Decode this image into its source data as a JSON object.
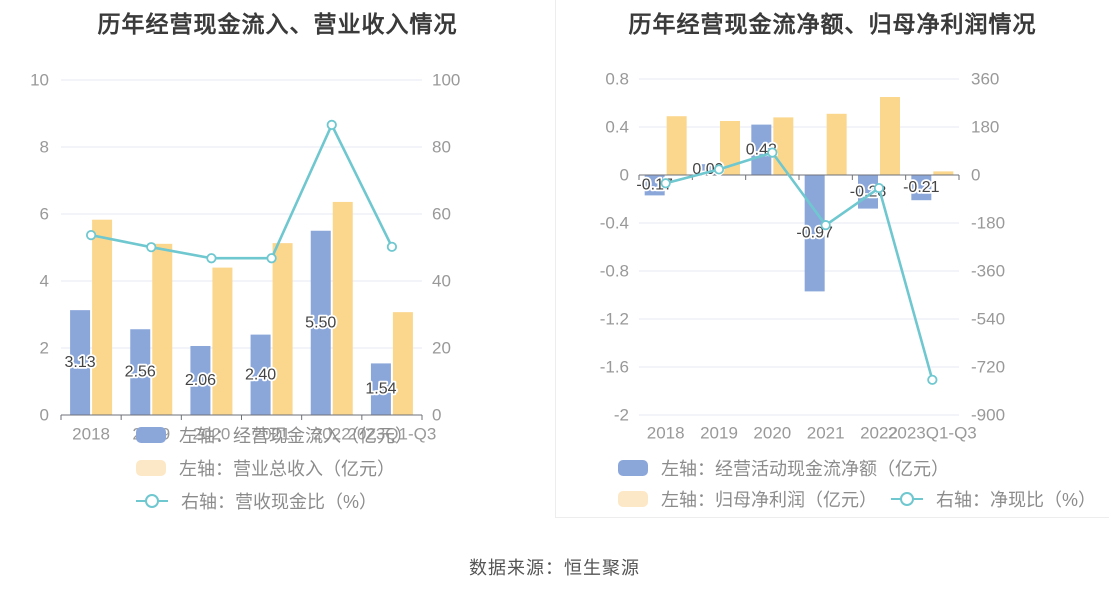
{
  "page": {
    "source": "数据来源：恒生聚源"
  },
  "colors": {
    "bar_blue": "#8ba7da",
    "bar_yellow": "#fbd78e",
    "legend_yellow": "#fce8c6",
    "line_teal": "#6fc7cf",
    "grid": "#e4eaf5",
    "axis": "#6e7079",
    "tick_text": "#999999",
    "bar_label": "#444444",
    "title_text": "#3a3a3a",
    "legend_text": "#8c8c8c",
    "source_text": "#555555"
  },
  "chart_data": [
    {
      "type": "bar",
      "title": "历年经营现金流入、营业收入情况",
      "categories": [
        "2018",
        "2019",
        "2020",
        "2021",
        "2022",
        "2023Q1-Q3"
      ],
      "left_axis": {
        "ticks": [
          "10",
          "8",
          "6",
          "4",
          "2",
          "0"
        ],
        "min": 0,
        "max": 10
      },
      "right_axis": {
        "ticks": [
          "100",
          "80",
          "60",
          "40",
          "20",
          "0"
        ],
        "min": 0,
        "max": 100
      },
      "grid": true,
      "legend_position": "bottom-left-overlap",
      "series": [
        {
          "name": "左轴：经营现金流入（亿元）",
          "type": "bar",
          "axis": "left",
          "color_key": "bar_blue",
          "values": [
            3.13,
            2.56,
            2.06,
            2.4,
            5.5,
            1.54
          ],
          "labels": [
            "3.13",
            "2.56",
            "2.06",
            "2.40",
            "5.50",
            "1.54"
          ]
        },
        {
          "name": "左轴：营业总收入（亿元）",
          "type": "bar",
          "axis": "left",
          "color_key": "bar_yellow",
          "values": [
            5.83,
            5.11,
            4.4,
            5.13,
            6.36,
            3.07
          ],
          "labels": null
        },
        {
          "name": "右轴：营收现金比（%）",
          "type": "line",
          "axis": "right",
          "color_key": "line_teal",
          "values": [
            53.7,
            50.1,
            46.8,
            46.8,
            86.6,
            50.2
          ],
          "labels": null
        }
      ]
    },
    {
      "type": "bar",
      "title": "历年经营现金流净额、归母净利润情况",
      "categories": [
        "2018",
        "2019",
        "2020",
        "2021",
        "2022",
        "2023Q1-Q3"
      ],
      "left_axis": {
        "ticks": [
          "0.8",
          "0.4",
          "0",
          "-0.4",
          "-0.8",
          "-1.2",
          "-1.6",
          "-2"
        ],
        "min": -2,
        "max": 0.8
      },
      "right_axis": {
        "ticks": [
          "360",
          "180",
          "0",
          "-180",
          "-360",
          "-540",
          "-720",
          "-900"
        ],
        "min": -900,
        "max": 360
      },
      "grid": true,
      "legend_position": "bottom-left",
      "series": [
        {
          "name": "左轴：经营活动现金流净额（亿元）",
          "type": "bar",
          "axis": "left",
          "color_key": "bar_blue",
          "values": [
            -0.17,
            0.09,
            0.42,
            -0.97,
            -0.28,
            -0.21
          ],
          "labels": [
            "-0.17",
            "0.09",
            "0.42",
            "-0.97",
            "-0.28",
            "-0.21"
          ]
        },
        {
          "name": "左轴：归母净利润（亿元）",
          "type": "bar",
          "axis": "left",
          "color_key": "bar_yellow",
          "values": [
            0.49,
            0.45,
            0.48,
            0.51,
            0.65,
            0.03
          ],
          "labels": null
        },
        {
          "name": "右轴：净现比（%）",
          "type": "line",
          "axis": "right",
          "values": [
            -31,
            21,
            84,
            -188,
            -49,
            -768
          ],
          "color_key": "line_teal",
          "labels": null
        }
      ]
    }
  ]
}
